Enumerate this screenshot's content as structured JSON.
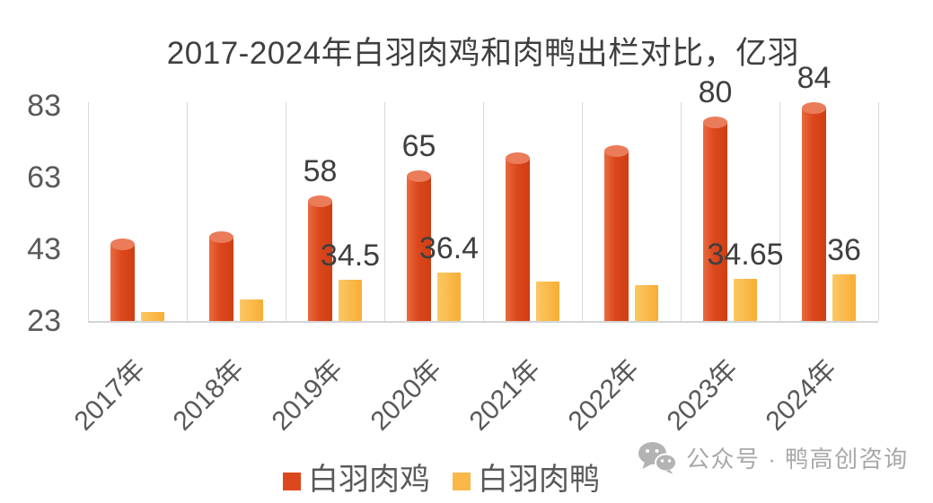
{
  "chart_data": {
    "type": "bar",
    "title": "2017-2024年白羽肉鸡和肉鸭出栏对比，亿羽",
    "unit": "亿羽",
    "categories": [
      "2017年",
      "2018年",
      "2019年",
      "2020年",
      "2021年",
      "2022年",
      "2023年",
      "2024年"
    ],
    "series": [
      {
        "name": "白羽肉鸡",
        "color": "#dc481d",
        "cap_color": "#eb7c59",
        "values": [
          46,
          48,
          58,
          65,
          70,
          72,
          80,
          84
        ],
        "data_labels": [
          null,
          null,
          "58",
          "65",
          null,
          null,
          "80",
          "84"
        ]
      },
      {
        "name": "白羽肉鸭",
        "color": "#f9b848",
        "cap_color": null,
        "values": [
          25.5,
          29,
          34.5,
          36.4,
          34,
          33,
          34.65,
          36
        ],
        "data_labels": [
          null,
          null,
          "34.5",
          "36.4",
          null,
          null,
          "34.65",
          "36"
        ]
      }
    ],
    "yticks": [
      23,
      43,
      63,
      83
    ],
    "ylim": [
      23,
      84
    ],
    "grid": "vertical category separators only",
    "legend_position": "bottom-center"
  },
  "watermark": {
    "icon": "wechat-icon",
    "text": "公众号 · 鸭高创咨询"
  },
  "colors": {
    "chicken": "#dc481d",
    "chicken_cap": "#eb7c59",
    "duck": "#f9b848",
    "title_text": "#3f3f3f",
    "axis_text": "#595959",
    "data_label_text": "#3f3f3f",
    "gridline": "#d9d9d9",
    "watermark_text": "#a8a8a8"
  }
}
